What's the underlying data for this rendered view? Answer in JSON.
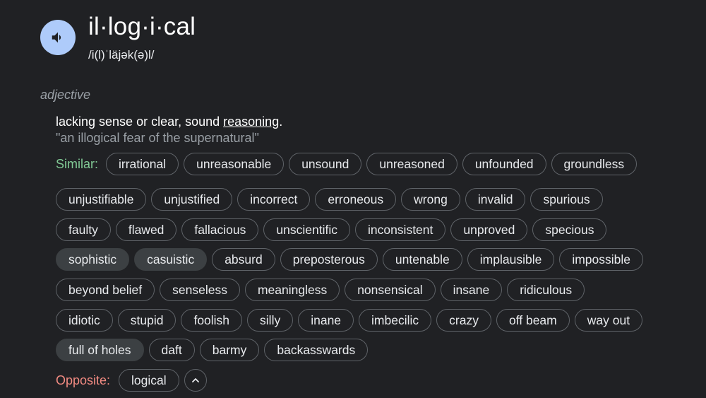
{
  "entry": {
    "word": "il·log·i·cal",
    "phonetic": "/i(l)ˈläjək(ə)l/",
    "part_of_speech": "adjective",
    "definition_prefix": "lacking sense or clear, sound ",
    "definition_link": "reasoning",
    "definition_suffix": ".",
    "example": "\"an illogical fear of the supernatural\""
  },
  "similar": {
    "label": "Similar:",
    "rows": [
      [
        {
          "text": "irrational",
          "filled": false
        },
        {
          "text": "unreasonable",
          "filled": false
        },
        {
          "text": "unsound",
          "filled": false
        },
        {
          "text": "unreasoned",
          "filled": false
        },
        {
          "text": "unfounded",
          "filled": false
        },
        {
          "text": "groundless",
          "filled": false
        }
      ],
      [
        {
          "text": "unjustifiable",
          "filled": false
        },
        {
          "text": "unjustified",
          "filled": false
        },
        {
          "text": "incorrect",
          "filled": false
        },
        {
          "text": "erroneous",
          "filled": false
        },
        {
          "text": "wrong",
          "filled": false
        },
        {
          "text": "invalid",
          "filled": false
        },
        {
          "text": "spurious",
          "filled": false
        }
      ],
      [
        {
          "text": "faulty",
          "filled": false
        },
        {
          "text": "flawed",
          "filled": false
        },
        {
          "text": "fallacious",
          "filled": false
        },
        {
          "text": "unscientific",
          "filled": false
        },
        {
          "text": "inconsistent",
          "filled": false
        },
        {
          "text": "unproved",
          "filled": false
        },
        {
          "text": "specious",
          "filled": false
        }
      ],
      [
        {
          "text": "sophistic",
          "filled": true
        },
        {
          "text": "casuistic",
          "filled": true
        },
        {
          "text": "absurd",
          "filled": false
        },
        {
          "text": "preposterous",
          "filled": false
        },
        {
          "text": "untenable",
          "filled": false
        },
        {
          "text": "implausible",
          "filled": false
        },
        {
          "text": "impossible",
          "filled": false
        }
      ],
      [
        {
          "text": "beyond belief",
          "filled": false
        },
        {
          "text": "senseless",
          "filled": false
        },
        {
          "text": "meaningless",
          "filled": false
        },
        {
          "text": "nonsensical",
          "filled": false
        },
        {
          "text": "insane",
          "filled": false
        },
        {
          "text": "ridiculous",
          "filled": false
        }
      ],
      [
        {
          "text": "idiotic",
          "filled": false
        },
        {
          "text": "stupid",
          "filled": false
        },
        {
          "text": "foolish",
          "filled": false
        },
        {
          "text": "silly",
          "filled": false
        },
        {
          "text": "inane",
          "filled": false
        },
        {
          "text": "imbecilic",
          "filled": false
        },
        {
          "text": "crazy",
          "filled": false
        },
        {
          "text": "off beam",
          "filled": false
        },
        {
          "text": "way out",
          "filled": false
        }
      ],
      [
        {
          "text": "full of holes",
          "filled": true
        },
        {
          "text": "daft",
          "filled": false
        },
        {
          "text": "barmy",
          "filled": false
        },
        {
          "text": "backasswards",
          "filled": false
        }
      ]
    ]
  },
  "opposite": {
    "label": "Opposite:",
    "chips": [
      {
        "text": "logical",
        "filled": false
      }
    ],
    "collapse_icon": "chevron-up-icon"
  },
  "colors": {
    "background": "#202124",
    "speaker": "#aecbfa",
    "similar_label": "#81c995",
    "opposite_label": "#f28b82",
    "chip_border": "#5f6368",
    "chip_filled": "#3c4043"
  }
}
